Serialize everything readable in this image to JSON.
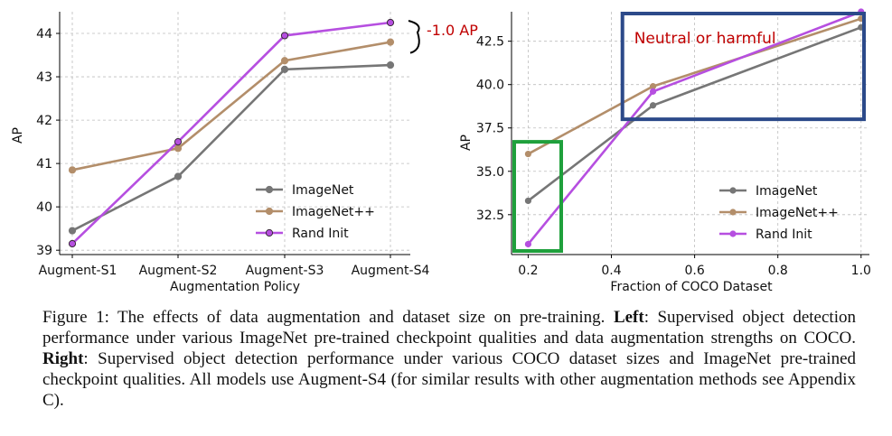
{
  "chart_data": [
    {
      "type": "line",
      "title": "",
      "xlabel": "Augmentation Policy",
      "ylabel": "AP",
      "categories": [
        "Augment-S1",
        "Augment-S2",
        "Augment-S3",
        "Augment-S4"
      ],
      "yticks": [
        "39",
        "40",
        "41",
        "42",
        "43",
        "44"
      ],
      "ylim": [
        38.9,
        44.5
      ],
      "grid": true,
      "legend_position": "lower-right",
      "series": [
        {
          "name": "ImageNet",
          "color": "#767676",
          "marker_edge": "#767676",
          "values": [
            39.45,
            40.7,
            43.17,
            43.27
          ]
        },
        {
          "name": "ImageNet++",
          "color": "#b38e6a",
          "marker_edge": "#b38e6a",
          "values": [
            40.85,
            41.35,
            43.37,
            43.8
          ]
        },
        {
          "name": "Rand Init",
          "color": "#b64fe0",
          "marker_edge": "#3a2a3a",
          "values": [
            39.15,
            41.5,
            43.95,
            44.25
          ]
        }
      ],
      "annotation": {
        "text": "-1.0 AP",
        "color": "#c00000"
      }
    },
    {
      "type": "line",
      "title": "",
      "xlabel": "Fraction of COCO Dataset",
      "ylabel": "AP",
      "xticks": [
        "0.2",
        "0.4",
        "0.6",
        "0.8",
        "1.0"
      ],
      "xlim": [
        0.16,
        1.02
      ],
      "yticks": [
        "32.5",
        "35.0",
        "37.5",
        "40.0",
        "42.5"
      ],
      "ylim": [
        30.2,
        44.2
      ],
      "grid": true,
      "legend_position": "lower-right",
      "series": [
        {
          "name": "ImageNet",
          "color": "#767676",
          "x": [
            0.2,
            0.5,
            1.0
          ],
          "values": [
            33.3,
            38.8,
            43.3
          ]
        },
        {
          "name": "ImageNet++",
          "color": "#b38e6a",
          "x": [
            0.2,
            0.5,
            1.0
          ],
          "values": [
            36.0,
            39.9,
            43.8
          ]
        },
        {
          "name": "Rand Init",
          "color": "#b64fe0",
          "x": [
            0.2,
            0.5,
            1.0
          ],
          "values": [
            30.8,
            39.6,
            44.2
          ]
        }
      ],
      "highlights": [
        {
          "label": "Neutral or harmful",
          "label_color": "#c00000",
          "box_color": "#2c4a8a",
          "x_range": [
            0.42,
            1.02
          ],
          "y_range": [
            38.0,
            44.2
          ]
        },
        {
          "label": "",
          "box_color": "#1fa03c",
          "x_range": [
            0.16,
            0.27
          ],
          "y_range": [
            30.2,
            36.7
          ]
        }
      ]
    }
  ],
  "caption": {
    "prefix": "Figure 1:  The effects of data augmentation and dataset size on pre-training.  ",
    "left_label": "Left",
    "left_text": ":  Supervised object detection performance under various ImageNet pre-trained checkpoint qualities and data augmentation strengths on COCO. ",
    "right_label": "Right",
    "right_text": ": Supervised object detection performance under various COCO dataset sizes and ImageNet pre-trained checkpoint qualities. All models use Augment-S4 (for similar results with other augmentation methods see Appendix C)."
  }
}
